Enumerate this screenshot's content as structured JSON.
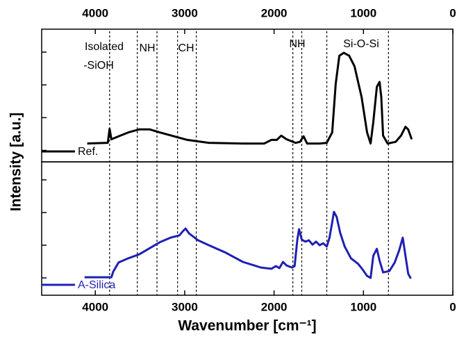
{
  "chart_data": [
    {
      "type": "line",
      "ylabel": "Intensity [a.u.]",
      "xlim": [
        4600,
        0
      ],
      "xticks": [
        4000,
        3000,
        2000,
        1000,
        0
      ],
      "ylim": [
        0.65,
        4.7
      ],
      "yticks": [
        1,
        2,
        3,
        4
      ],
      "x": [
        4090,
        3860,
        3840,
        3820,
        3740,
        3630,
        3510,
        3390,
        3280,
        3120,
        2970,
        2730,
        2350,
        2110,
        2030,
        1970,
        1920,
        1860,
        1760,
        1710,
        1670,
        1630,
        1490,
        1410,
        1350,
        1310,
        1270,
        1220,
        1160,
        1100,
        1020,
        960,
        920,
        890,
        850,
        820,
        800,
        780,
        730,
        640,
        580,
        530,
        500,
        460
      ],
      "series": [
        {
          "name": "Ref.",
          "color": "#000000",
          "values": [
            1.21,
            1.23,
            1.66,
            1.34,
            1.43,
            1.55,
            1.64,
            1.64,
            1.55,
            1.43,
            1.32,
            1.23,
            1.21,
            1.21,
            1.32,
            1.32,
            1.45,
            1.34,
            1.23,
            1.26,
            1.43,
            1.21,
            1.21,
            1.23,
            1.55,
            3.04,
            3.89,
            3.98,
            3.89,
            3.57,
            2.62,
            1.55,
            1.21,
            1.87,
            2.94,
            3.09,
            2.62,
            1.45,
            1.21,
            1.26,
            1.45,
            1.72,
            1.64,
            1.34
          ]
        }
      ],
      "vlines": [
        3840,
        3530,
        3310,
        3080,
        2870,
        1790,
        1690,
        1410,
        720
      ],
      "annotations": [
        "Isolated",
        "-SiOH",
        "NH",
        "CH",
        "NH",
        "Si-O-Si"
      ]
    },
    {
      "type": "line",
      "xlabel": "Wavenumber [cm⁻¹]",
      "xlim": [
        4600,
        0
      ],
      "xticks": [
        4000,
        3000,
        2000,
        1000,
        0
      ],
      "ylim": [
        0.47,
        4.55
      ],
      "yticks": [
        1,
        2,
        3,
        4
      ],
      "x": [
        4120,
        3820,
        3800,
        3740,
        3630,
        3510,
        3390,
        3280,
        3160,
        3060,
        3020,
        2990,
        2950,
        2850,
        2730,
        2540,
        2350,
        2150,
        2030,
        1980,
        1940,
        1900,
        1860,
        1800,
        1770,
        1740,
        1720,
        1690,
        1650,
        1610,
        1570,
        1530,
        1490,
        1450,
        1410,
        1380,
        1350,
        1330,
        1300,
        1260,
        1210,
        1140,
        1060,
        1010,
        960,
        920,
        890,
        850,
        820,
        780,
        710,
        650,
        600,
        560,
        530,
        500,
        470
      ],
      "series": [
        {
          "name": "A-Silica",
          "color": "#1f1fb4",
          "values": [
            1.02,
            1.02,
            1.19,
            1.47,
            1.6,
            1.72,
            1.91,
            2.09,
            2.23,
            2.3,
            2.43,
            2.51,
            2.36,
            2.15,
            2.0,
            1.77,
            1.49,
            1.32,
            1.28,
            1.36,
            1.3,
            1.49,
            1.38,
            1.32,
            1.36,
            2.17,
            2.49,
            2.17,
            2.11,
            2.15,
            2.02,
            2.11,
            2.0,
            2.06,
            1.96,
            2.23,
            2.7,
            3.02,
            2.87,
            2.38,
            1.96,
            1.6,
            1.43,
            1.26,
            1.06,
            1.0,
            1.68,
            1.89,
            1.53,
            1.17,
            1.21,
            1.47,
            1.85,
            2.23,
            1.68,
            1.13,
            0.98
          ]
        }
      ]
    }
  ]
}
